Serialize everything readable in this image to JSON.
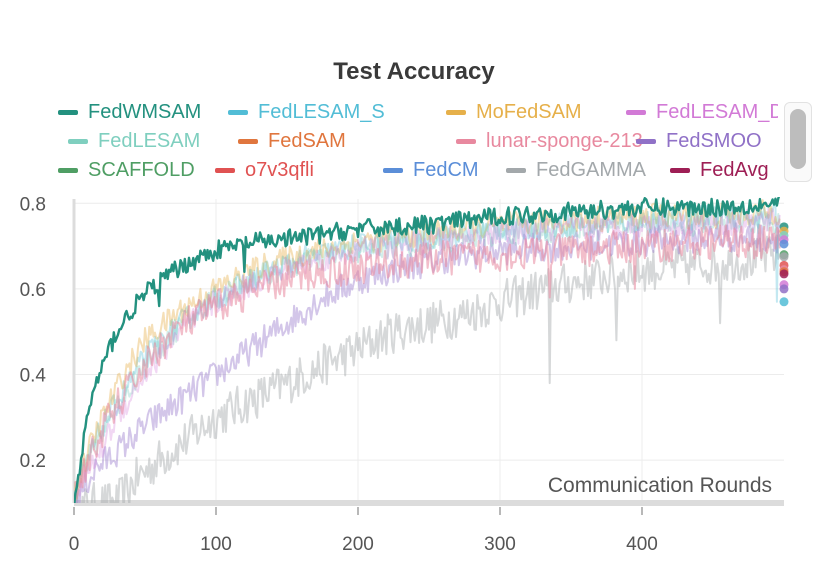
{
  "chart_data": {
    "type": "line",
    "title": "Test Accuracy",
    "xlabel": "Communication Rounds",
    "ylabel": "",
    "xlim": [
      0,
      500
    ],
    "ylim": [
      0.1,
      0.81
    ],
    "x_ticks": [
      0,
      100,
      200,
      300,
      400
    ],
    "y_ticks": [
      0.2,
      0.4,
      0.6,
      0.8
    ],
    "grid": true,
    "legend_position": "top",
    "series": [
      {
        "name": "FedGAMMA",
        "color": "#a3a8ab",
        "opacity": 0.45,
        "draw": true,
        "points": [
          [
            0,
            0.08
          ],
          [
            15,
            0.1
          ],
          [
            30,
            0.1
          ],
          [
            45,
            0.16
          ],
          [
            60,
            0.2
          ],
          [
            80,
            0.25
          ],
          [
            100,
            0.3
          ],
          [
            125,
            0.34
          ],
          [
            150,
            0.38
          ],
          [
            175,
            0.42
          ],
          [
            200,
            0.46
          ],
          [
            225,
            0.5
          ],
          [
            250,
            0.52
          ],
          [
            275,
            0.54
          ],
          [
            300,
            0.57
          ],
          [
            330,
            0.6
          ],
          [
            360,
            0.62
          ],
          [
            390,
            0.64
          ],
          [
            420,
            0.65
          ],
          [
            450,
            0.66
          ],
          [
            480,
            0.67
          ],
          [
            497,
            0.68
          ]
        ],
        "noise": 0.05,
        "dips": [
          [
            335,
            0.38
          ],
          [
            382,
            0.48
          ],
          [
            455,
            0.52
          ]
        ]
      },
      {
        "name": "FedSMOO",
        "color": "#9071c7",
        "opacity": 0.4,
        "draw": true,
        "points": [
          [
            0,
            0.1
          ],
          [
            15,
            0.18
          ],
          [
            30,
            0.22
          ],
          [
            50,
            0.28
          ],
          [
            75,
            0.34
          ],
          [
            100,
            0.4
          ],
          [
            125,
            0.46
          ],
          [
            150,
            0.52
          ],
          [
            175,
            0.58
          ],
          [
            200,
            0.62
          ],
          [
            230,
            0.65
          ],
          [
            260,
            0.67
          ],
          [
            300,
            0.69
          ],
          [
            350,
            0.7
          ],
          [
            400,
            0.71
          ],
          [
            450,
            0.72
          ],
          [
            497,
            0.72
          ]
        ],
        "noise": 0.035,
        "dips": []
      },
      {
        "name": "FedLESAM_S",
        "color": "#52bdd6",
        "opacity": 0.35,
        "draw": true,
        "points": [
          [
            0,
            0.12
          ],
          [
            10,
            0.2
          ],
          [
            20,
            0.28
          ],
          [
            35,
            0.36
          ],
          [
            50,
            0.44
          ],
          [
            75,
            0.52
          ],
          [
            100,
            0.58
          ],
          [
            130,
            0.63
          ],
          [
            160,
            0.67
          ],
          [
            200,
            0.7
          ],
          [
            250,
            0.72
          ],
          [
            300,
            0.74
          ],
          [
            350,
            0.75
          ],
          [
            400,
            0.76
          ],
          [
            450,
            0.77
          ],
          [
            497,
            0.77
          ]
        ],
        "noise": 0.03,
        "dips": [
          [
            495,
            0.57
          ]
        ]
      },
      {
        "name": "MoFedSAM",
        "color": "#e6b04a",
        "opacity": 0.4,
        "draw": true,
        "points": [
          [
            0,
            0.12
          ],
          [
            10,
            0.22
          ],
          [
            20,
            0.3
          ],
          [
            35,
            0.4
          ],
          [
            50,
            0.48
          ],
          [
            75,
            0.55
          ],
          [
            100,
            0.6
          ],
          [
            130,
            0.65
          ],
          [
            160,
            0.68
          ],
          [
            200,
            0.71
          ],
          [
            250,
            0.73
          ],
          [
            300,
            0.75
          ],
          [
            350,
            0.76
          ],
          [
            400,
            0.77
          ],
          [
            450,
            0.77
          ],
          [
            497,
            0.78
          ]
        ],
        "noise": 0.03,
        "dips": []
      },
      {
        "name": "FedLESAM",
        "color": "#7fcfbf",
        "opacity": 0.35,
        "draw": true,
        "points": [
          [
            0,
            0.12
          ],
          [
            10,
            0.2
          ],
          [
            25,
            0.3
          ],
          [
            45,
            0.4
          ],
          [
            70,
            0.5
          ],
          [
            100,
            0.58
          ],
          [
            130,
            0.63
          ],
          [
            160,
            0.66
          ],
          [
            200,
            0.69
          ],
          [
            250,
            0.71
          ],
          [
            300,
            0.73
          ],
          [
            350,
            0.74
          ],
          [
            400,
            0.75
          ],
          [
            450,
            0.75
          ],
          [
            497,
            0.76
          ]
        ],
        "noise": 0.03,
        "dips": []
      },
      {
        "name": "FedLESAM_D",
        "color": "#d27ad6",
        "opacity": 0.3,
        "draw": true,
        "points": [
          [
            0,
            0.12
          ],
          [
            15,
            0.2
          ],
          [
            30,
            0.3
          ],
          [
            50,
            0.4
          ],
          [
            75,
            0.5
          ],
          [
            100,
            0.57
          ],
          [
            130,
            0.62
          ],
          [
            160,
            0.66
          ],
          [
            200,
            0.69
          ],
          [
            250,
            0.71
          ],
          [
            300,
            0.73
          ],
          [
            350,
            0.74
          ],
          [
            400,
            0.75
          ],
          [
            450,
            0.75
          ],
          [
            497,
            0.76
          ]
        ],
        "noise": 0.03,
        "dips": []
      },
      {
        "name": "lunar-sponge-213",
        "color": "#e8899f",
        "opacity": 0.55,
        "draw": true,
        "points": [
          [
            0,
            0.12
          ],
          [
            10,
            0.2
          ],
          [
            25,
            0.3
          ],
          [
            45,
            0.4
          ],
          [
            70,
            0.5
          ],
          [
            100,
            0.56
          ],
          [
            130,
            0.6
          ],
          [
            160,
            0.63
          ],
          [
            200,
            0.65
          ],
          [
            250,
            0.67
          ],
          [
            300,
            0.68
          ],
          [
            350,
            0.69
          ],
          [
            400,
            0.7
          ],
          [
            450,
            0.71
          ],
          [
            497,
            0.71
          ]
        ],
        "noise": 0.04,
        "dips": [
          [
            335,
            0.58
          ],
          [
            395,
            0.6
          ]
        ]
      },
      {
        "name": "FedWMSAM",
        "color": "#23917f",
        "opacity": 1.0,
        "draw": true,
        "points": [
          [
            0,
            0.1
          ],
          [
            5,
            0.2
          ],
          [
            10,
            0.32
          ],
          [
            20,
            0.42
          ],
          [
            30,
            0.5
          ],
          [
            45,
            0.57
          ],
          [
            60,
            0.62
          ],
          [
            80,
            0.66
          ],
          [
            100,
            0.69
          ],
          [
            130,
            0.71
          ],
          [
            160,
            0.72
          ],
          [
            200,
            0.74
          ],
          [
            250,
            0.75
          ],
          [
            300,
            0.77
          ],
          [
            350,
            0.78
          ],
          [
            400,
            0.79
          ],
          [
            450,
            0.79
          ],
          [
            497,
            0.8
          ]
        ],
        "noise": 0.022,
        "dips": [
          [
            22,
            0.44
          ],
          [
            60,
            0.56
          ],
          [
            120,
            0.64
          ]
        ]
      },
      {
        "name": "FedSAM",
        "color": "#e0763e",
        "opacity": 0,
        "draw": false,
        "points": [],
        "noise": 0,
        "dips": []
      },
      {
        "name": "SCAFFOLD",
        "color": "#4f9e64",
        "opacity": 0,
        "draw": false,
        "points": [],
        "noise": 0,
        "dips": []
      },
      {
        "name": "o7v3qfli",
        "color": "#e05252",
        "opacity": 0,
        "draw": false,
        "points": [],
        "noise": 0,
        "dips": []
      },
      {
        "name": "FedCM",
        "color": "#5b8ed8",
        "opacity": 0,
        "draw": false,
        "points": [],
        "noise": 0,
        "dips": []
      },
      {
        "name": "FedAvg",
        "color": "#9e1f55",
        "opacity": 0,
        "draw": false,
        "points": [],
        "noise": 0,
        "dips": []
      }
    ],
    "end_markers": [
      {
        "color": "#23917f",
        "value": 0.745
      },
      {
        "color": "#e6b04a",
        "value": 0.735
      },
      {
        "color": "#7fcfbf",
        "value": 0.725
      },
      {
        "color": "#d27ad6",
        "value": 0.715
      },
      {
        "color": "#5b8ed8",
        "value": 0.705
      },
      {
        "color": "#4f9e64",
        "value": 0.68
      },
      {
        "color": "#a3a8ab",
        "value": 0.675
      },
      {
        "color": "#e05252",
        "value": 0.655
      },
      {
        "color": "#e8899f",
        "value": 0.645
      },
      {
        "color": "#e0763e",
        "value": 0.64
      },
      {
        "color": "#9e1f55",
        "value": 0.635
      },
      {
        "color": "#d27ad6",
        "value": 0.61
      },
      {
        "color": "#9071c7",
        "value": 0.6
      },
      {
        "color": "#52bdd6",
        "value": 0.57
      }
    ]
  },
  "legend": {
    "items": [
      {
        "label": "FedWMSAM",
        "color": "#23917f"
      },
      {
        "label": "FedLESAM_S",
        "color": "#52bdd6"
      },
      {
        "label": "MoFedSAM",
        "color": "#e6b04a"
      },
      {
        "label": "FedLESAM_D",
        "color": "#d27ad6"
      },
      {
        "label": "FedLESAM",
        "color": "#7fcfbf"
      },
      {
        "label": "FedSAM",
        "color": "#e0763e"
      },
      {
        "label": "lunar-sponge-213",
        "color": "#e8899f"
      },
      {
        "label": "FedSMOO",
        "color": "#9071c7"
      },
      {
        "label": "SCAFFOLD",
        "color": "#4f9e64"
      },
      {
        "label": "o7v3qfli",
        "color": "#e05252"
      },
      {
        "label": "FedCM",
        "color": "#5b8ed8"
      },
      {
        "label": "FedGAMMA",
        "color": "#a3a8ab"
      },
      {
        "label": "FedAvg",
        "color": "#9e1f55"
      }
    ]
  }
}
